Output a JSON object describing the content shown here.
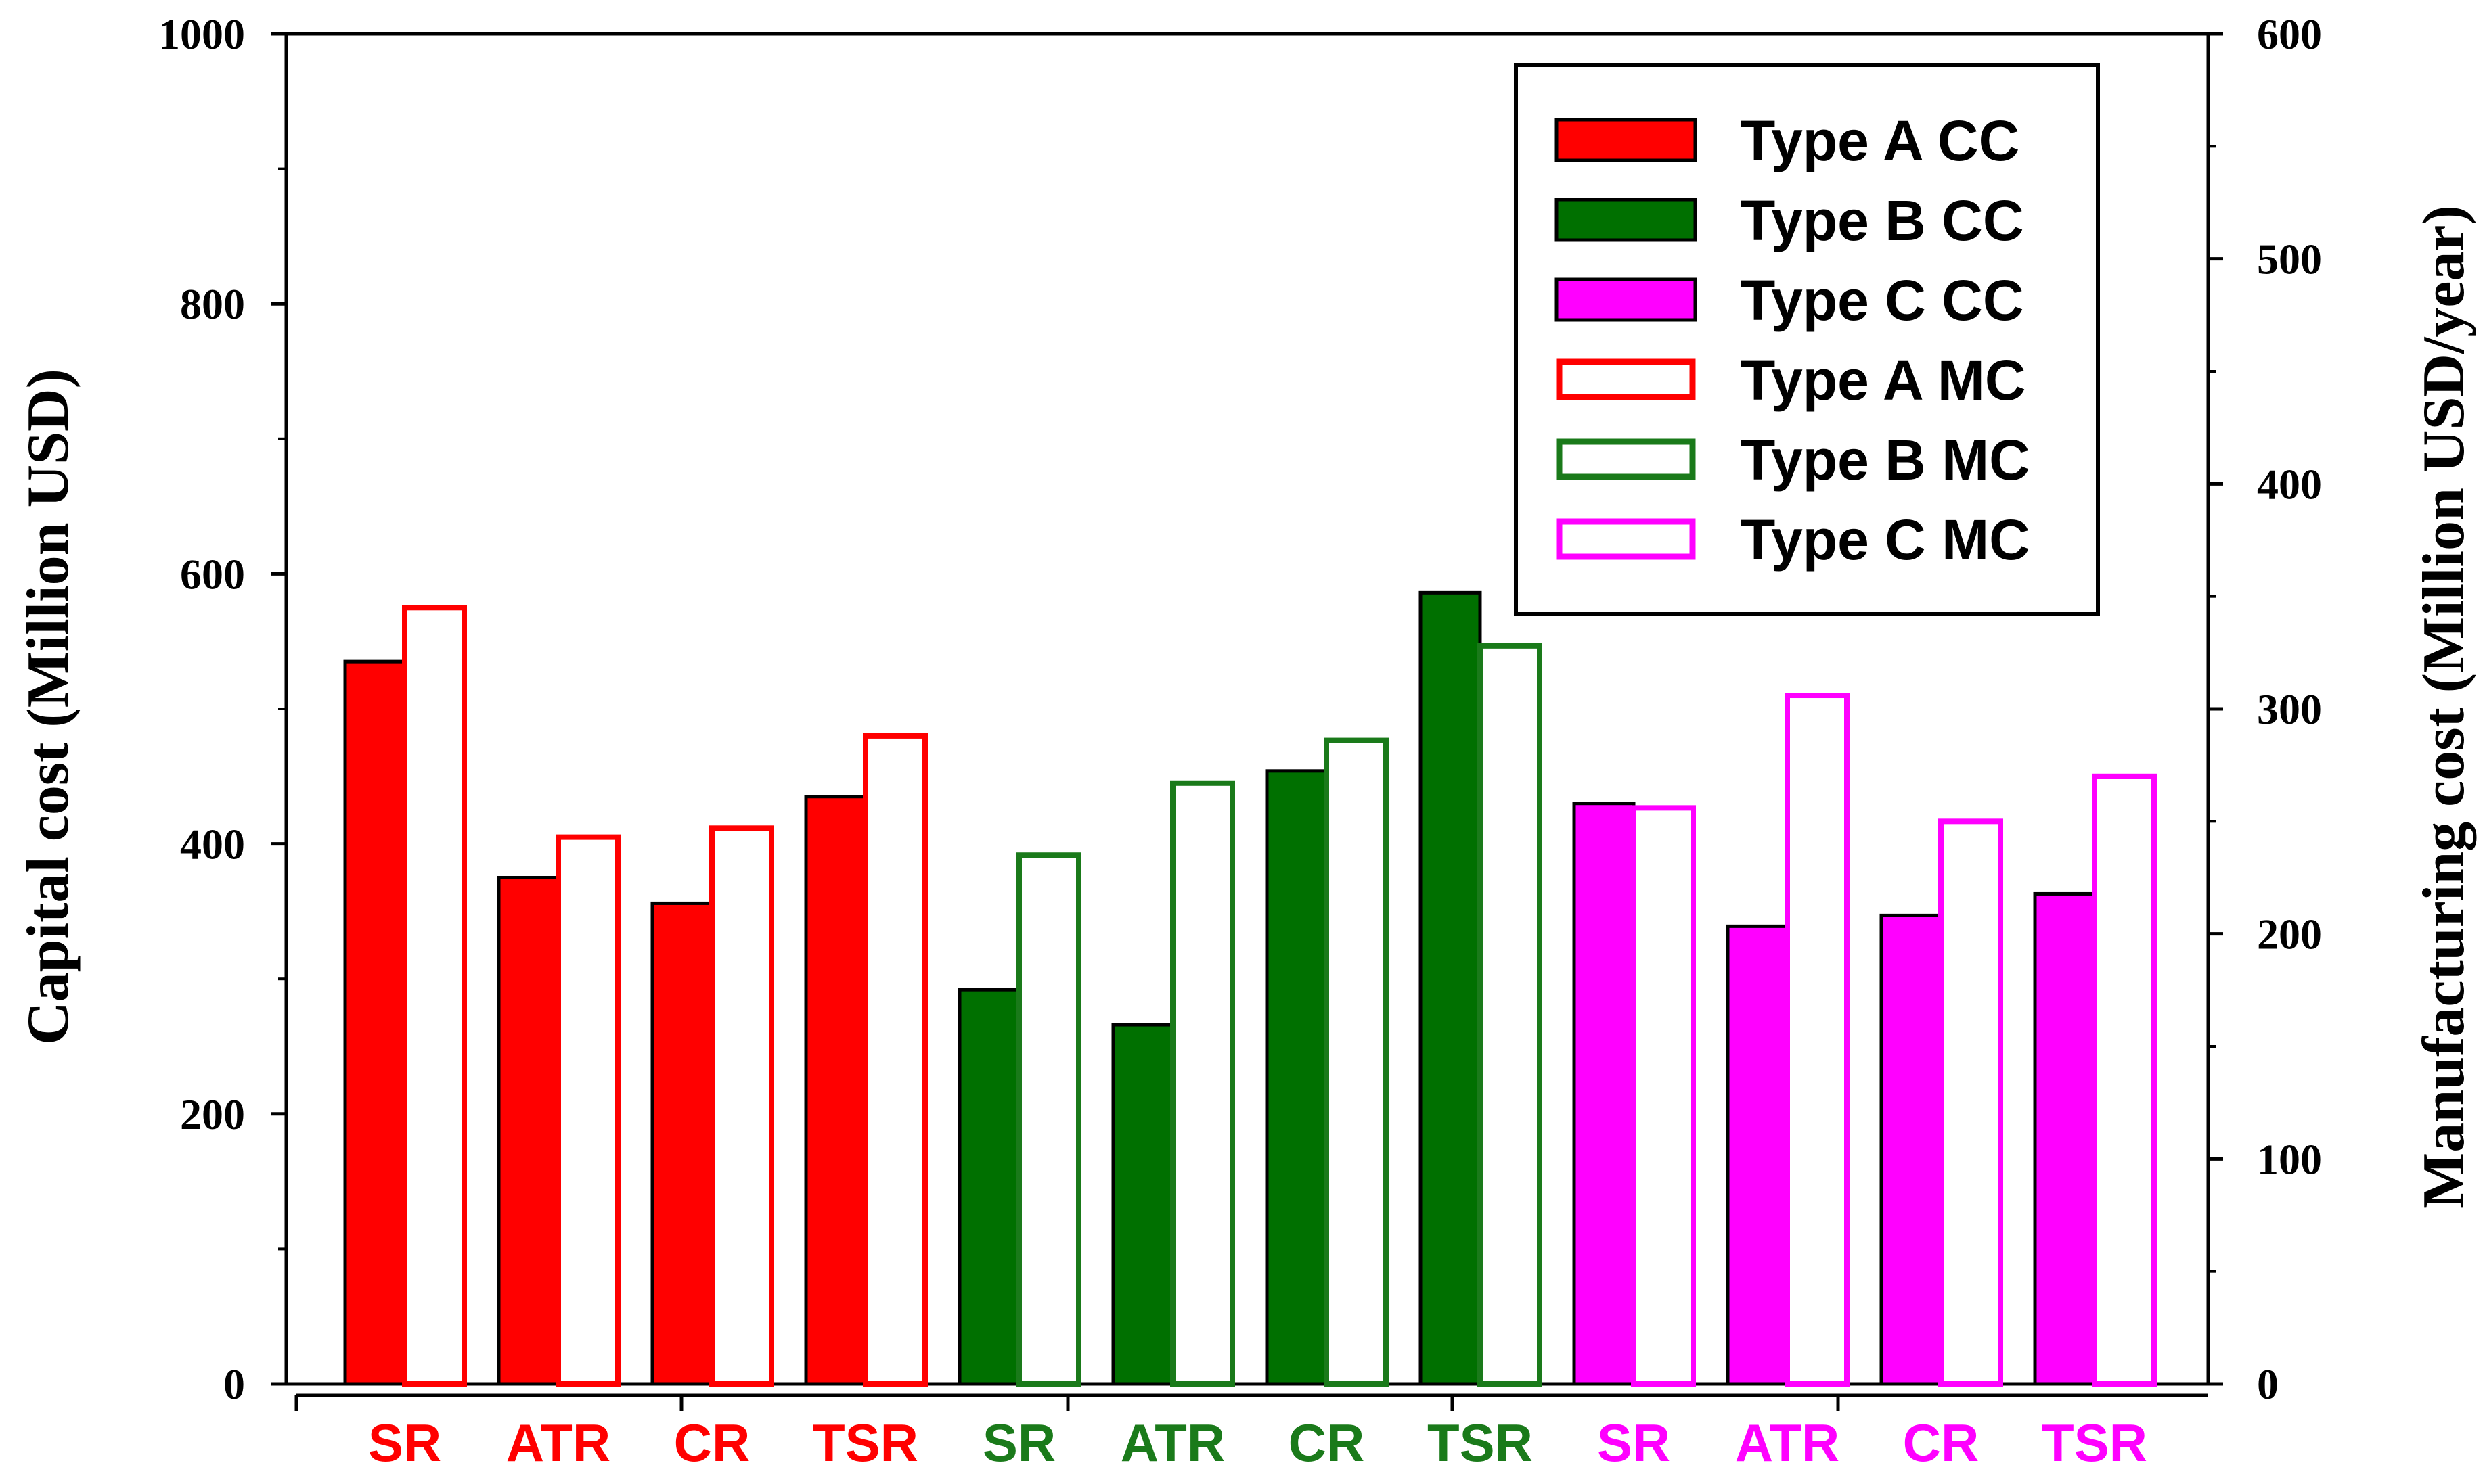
{
  "chart_data": {
    "type": "bar",
    "left_axis": {
      "label": "Capital cost (Million USD)",
      "ylim": [
        0,
        1000
      ],
      "ticks": [
        "0",
        "200",
        "400",
        "600",
        "800",
        "1000"
      ]
    },
    "right_axis": {
      "label": "Manufacturing cost (Million USD/year)",
      "ylim": [
        0,
        600
      ],
      "ticks": [
        "0",
        "100",
        "200",
        "300",
        "400",
        "500",
        "600"
      ]
    },
    "groups": [
      {
        "name": "Type A",
        "color": "#ff0000",
        "fill_color": "#ff0000",
        "categories": [
          "SR",
          "ATR",
          "CR",
          "TSR"
        ],
        "cc_values": [
          535,
          375,
          356,
          435
        ],
        "mc_values": [
          345,
          243,
          247,
          288
        ]
      },
      {
        "name": "Type B",
        "color": "#1a7a1a",
        "fill_color": "#007000",
        "categories": [
          "SR",
          "ATR",
          "CR",
          "TSR"
        ],
        "cc_values": [
          292,
          266,
          454,
          586
        ],
        "mc_values": [
          235,
          267,
          286,
          328
        ]
      },
      {
        "name": "Type C",
        "color": "#ff00ff",
        "fill_color": "#ff00ff",
        "categories": [
          "SR",
          "ATR",
          "CR",
          "TSR"
        ],
        "cc_values": [
          430,
          339,
          347,
          363
        ],
        "mc_values": [
          256,
          306,
          250,
          270
        ]
      }
    ],
    "legend": {
      "position": "top-right",
      "entries": [
        {
          "label": "Type A CC",
          "color": "#ff0000",
          "filled": true
        },
        {
          "label": "Type B CC",
          "color": "#007000",
          "filled": true
        },
        {
          "label": "Type C CC",
          "color": "#ff00ff",
          "filled": true
        },
        {
          "label": "Type A MC",
          "color": "#ff0000",
          "filled": false
        },
        {
          "label": "Type B MC",
          "color": "#1a7a1a",
          "filled": false
        },
        {
          "label": "Type C MC",
          "color": "#ff00ff",
          "filled": false
        }
      ]
    }
  }
}
